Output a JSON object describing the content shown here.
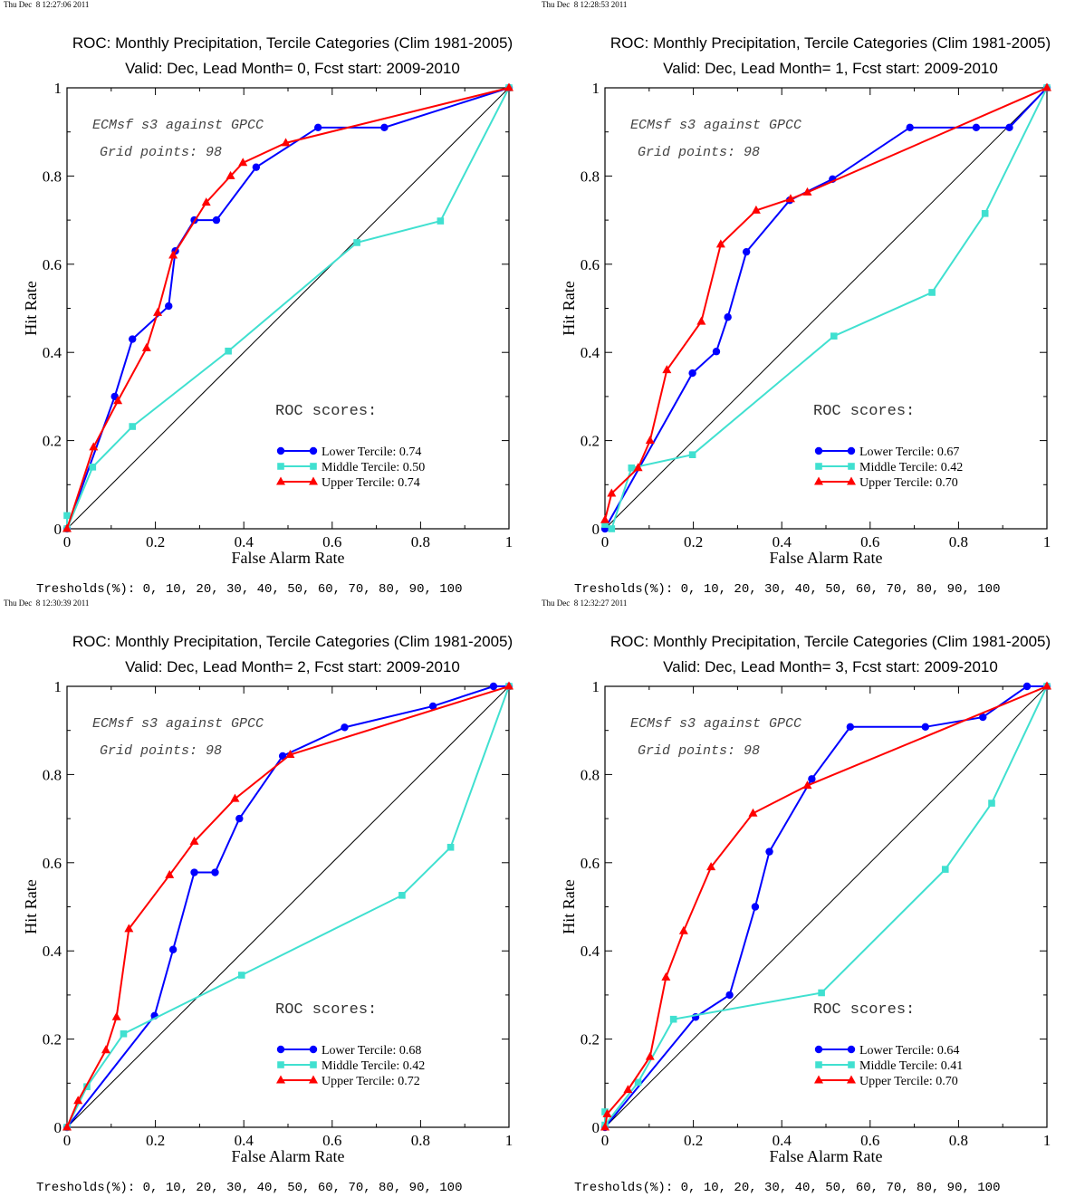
{
  "common": {
    "xlabel": "False Alarm Rate",
    "ylabel": "Hit Rate",
    "title": "ROC: Monthly Precipitation, Tercile Categories (Clim 1981-2005)",
    "annot1": "ECMsf s3 against GPCC",
    "annot2": "Grid points:   98",
    "roc_label": "ROC scores:",
    "thresholds": "Tresholds(%): 0, 10, 20, 30, 40, 50, 60, 70, 80, 90, 100",
    "xticks": [
      "0",
      "0.2",
      "0.4",
      "0.6",
      "0.8",
      "1"
    ],
    "yticks": [
      "0",
      "0.2",
      "0.4",
      "0.6",
      "0.8",
      "1"
    ],
    "colors": {
      "lower": "#0000ff",
      "middle": "#40e0d0",
      "upper": "#ff0000",
      "diag": "#000000"
    }
  },
  "panels": [
    {
      "timestamp": "Thu Dec  8 12:27:06 2011",
      "subtitle": "Valid: Dec, Lead Month= 0, Fcst start: 2009-2010"
    },
    {
      "timestamp": "Thu Dec  8 12:28:53 2011",
      "subtitle": "Valid: Dec, Lead Month= 1, Fcst start: 2009-2010"
    },
    {
      "timestamp": "Thu Dec  8 12:30:39 2011",
      "subtitle": "Valid: Dec, Lead Month= 2, Fcst start: 2009-2010"
    },
    {
      "timestamp": "Thu Dec  8 12:32:27 2011",
      "subtitle": "Valid: Dec, Lead Month= 3, Fcst start: 2009-2010"
    }
  ],
  "chart_data": [
    {
      "type": "line",
      "title": "ROC: Monthly Precipitation, Tercile Categories (Clim 1981-2005)",
      "subtitle": "Valid: Dec, Lead Month= 0, Fcst start: 2009-2010",
      "xlabel": "False Alarm Rate",
      "ylabel": "Hit Rate",
      "xlim": [
        0,
        1
      ],
      "ylim": [
        0,
        1
      ],
      "series": [
        {
          "name": "Lower Tercile: 0.74",
          "marker": "circle",
          "color": "#0000ff",
          "x": [
            0,
            0.108,
            0.148,
            0.23,
            0.245,
            0.288,
            0.338,
            0.428,
            0.568,
            0.718,
            1
          ],
          "y": [
            0,
            0.3,
            0.43,
            0.505,
            0.63,
            0.7,
            0.7,
            0.82,
            0.91,
            0.91,
            1
          ]
        },
        {
          "name": "Middle Tercile: 0.50",
          "marker": "square",
          "color": "#40e0d0",
          "x": [
            0,
            0,
            0.058,
            0.148,
            0.365,
            0.656,
            0.845,
            1
          ],
          "y": [
            0.03,
            0,
            0.14,
            0.232,
            0.403,
            0.649,
            0.698,
            1
          ]
        },
        {
          "name": "Upper Tercile: 0.74",
          "marker": "triangle",
          "color": "#ff0000",
          "x": [
            0,
            0.06,
            0.115,
            0.18,
            0.205,
            0.24,
            0.315,
            0.37,
            0.398,
            0.495,
            1
          ],
          "y": [
            0,
            0.185,
            0.29,
            0.41,
            0.49,
            0.62,
            0.74,
            0.8,
            0.83,
            0.875,
            1
          ]
        }
      ]
    },
    {
      "type": "line",
      "title": "ROC: Monthly Precipitation, Tercile Categories (Clim 1981-2005)",
      "subtitle": "Valid: Dec, Lead Month= 1, Fcst start: 2009-2010",
      "xlabel": "False Alarm Rate",
      "ylabel": "Hit Rate",
      "xlim": [
        0,
        1
      ],
      "ylim": [
        0,
        1
      ],
      "series": [
        {
          "name": "Lower Tercile: 0.67",
          "marker": "circle",
          "color": "#0000ff",
          "x": [
            0,
            0.198,
            0.252,
            0.278,
            0.32,
            0.418,
            0.515,
            0.69,
            0.84,
            0.915,
            1
          ],
          "y": [
            0,
            0.353,
            0.402,
            0.48,
            0.628,
            0.745,
            0.793,
            0.91,
            0.91,
            0.91,
            1
          ]
        },
        {
          "name": "Middle Tercile: 0.42",
          "marker": "square",
          "color": "#40e0d0",
          "x": [
            0,
            0.015,
            0.06,
            0.198,
            0.518,
            0.74,
            0.86,
            1
          ],
          "y": [
            0.01,
            0,
            0.138,
            0.168,
            0.437,
            0.536,
            0.715,
            1
          ]
        },
        {
          "name": "Upper Tercile: 0.70",
          "marker": "triangle",
          "color": "#ff0000",
          "x": [
            0,
            0.015,
            0.075,
            0.102,
            0.14,
            0.218,
            0.262,
            0.342,
            0.42,
            0.458,
            1
          ],
          "y": [
            0.02,
            0.08,
            0.138,
            0.2,
            0.36,
            0.47,
            0.645,
            0.722,
            0.748,
            0.763,
            1
          ]
        }
      ]
    },
    {
      "type": "line",
      "title": "ROC: Monthly Precipitation, Tercile Categories (Clim 1981-2005)",
      "subtitle": "Valid: Dec, Lead Month= 2, Fcst start: 2009-2010",
      "xlabel": "False Alarm Rate",
      "ylabel": "Hit Rate",
      "xlim": [
        0,
        1
      ],
      "ylim": [
        0,
        1
      ],
      "series": [
        {
          "name": "Lower Tercile: 0.68",
          "marker": "circle",
          "color": "#0000ff",
          "x": [
            0,
            0.198,
            0.24,
            0.288,
            0.335,
            0.39,
            0.488,
            0.628,
            0.828,
            0.965,
            1
          ],
          "y": [
            0,
            0.253,
            0.403,
            0.578,
            0.578,
            0.7,
            0.842,
            0.907,
            0.955,
            1,
            1
          ]
        },
        {
          "name": "Middle Tercile: 0.42",
          "marker": "square",
          "color": "#40e0d0",
          "x": [
            0,
            0.045,
            0.128,
            0.395,
            0.758,
            0.868,
            1
          ],
          "y": [
            0,
            0.092,
            0.212,
            0.345,
            0.526,
            0.635,
            1
          ]
        },
        {
          "name": "Upper Tercile: 0.72",
          "marker": "triangle",
          "color": "#ff0000",
          "x": [
            0,
            0.025,
            0.088,
            0.112,
            0.14,
            0.232,
            0.288,
            0.38,
            0.505,
            1
          ],
          "y": [
            0,
            0.06,
            0.175,
            0.25,
            0.45,
            0.572,
            0.648,
            0.745,
            0.845,
            1
          ]
        }
      ]
    },
    {
      "type": "line",
      "title": "ROC: Monthly Precipitation, Tercile Categories (Clim 1981-2005)",
      "subtitle": "Valid: Dec, Lead Month= 3, Fcst start: 2009-2010",
      "xlabel": "False Alarm Rate",
      "ylabel": "Hit Rate",
      "xlim": [
        0,
        1
      ],
      "ylim": [
        0,
        1
      ],
      "series": [
        {
          "name": "Lower Tercile: 0.64",
          "marker": "circle",
          "color": "#0000ff",
          "x": [
            0,
            0.205,
            0.282,
            0.34,
            0.372,
            0.468,
            0.555,
            0.725,
            0.855,
            0.955,
            1
          ],
          "y": [
            0,
            0.25,
            0.3,
            0.5,
            0.625,
            0.79,
            0.908,
            0.908,
            0.93,
            1,
            1
          ]
        },
        {
          "name": "Middle Tercile: 0.41",
          "marker": "square",
          "color": "#40e0d0",
          "x": [
            0,
            0,
            0.075,
            0.155,
            0.49,
            0.77,
            0.875,
            1
          ],
          "y": [
            0.035,
            0.005,
            0.102,
            0.245,
            0.305,
            0.585,
            0.735,
            1
          ]
        },
        {
          "name": "Upper Tercile: 0.70",
          "marker": "triangle",
          "color": "#ff0000",
          "x": [
            0,
            0.005,
            0.052,
            0.102,
            0.138,
            0.178,
            0.24,
            0.335,
            0.458,
            1
          ],
          "y": [
            0,
            0.03,
            0.085,
            0.16,
            0.34,
            0.445,
            0.59,
            0.712,
            0.775,
            1
          ]
        }
      ]
    }
  ]
}
